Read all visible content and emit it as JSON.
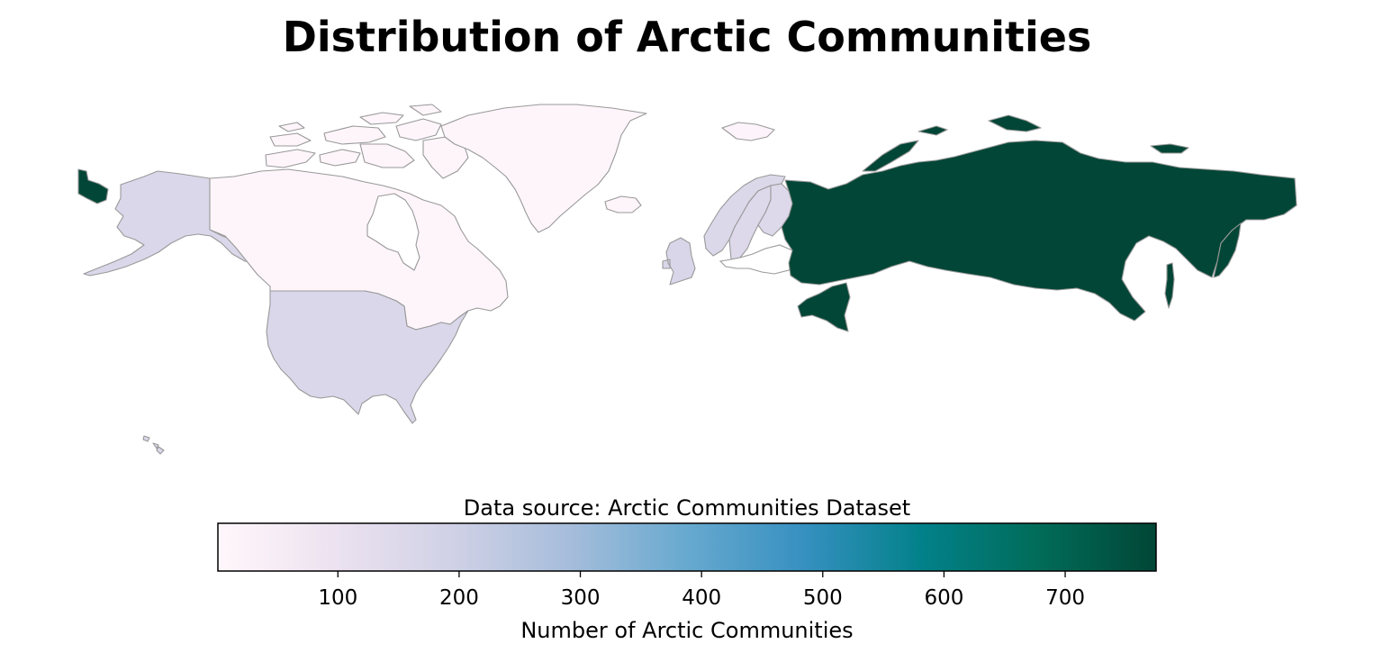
{
  "title": "Distribution of Arctic Communities",
  "data_source_text": "Data source: Arctic Communities Dataset",
  "colors": {
    "border": "#999999",
    "ramp": [
      "#fff7fb",
      "#ece2f0",
      "#d0d1e6",
      "#a6bddb",
      "#67a9cf",
      "#3690c0",
      "#02818a",
      "#016c59",
      "#014636"
    ]
  },
  "chart_data": {
    "type": "choropleth",
    "title": "Distribution of Arctic Communities",
    "colormap": "PuBuGn",
    "value_range": [
      1,
      775
    ],
    "regions": [
      {
        "name": "Canada",
        "value": 12
      },
      {
        "name": "Greenland",
        "value": 10
      },
      {
        "name": "United States",
        "value": 160
      },
      {
        "name": "Norway",
        "value": 155
      },
      {
        "name": "Sweden",
        "value": 150
      },
      {
        "name": "Finland",
        "value": 150
      },
      {
        "name": "Iceland",
        "value": 12
      },
      {
        "name": "United Kingdom",
        "value": 165
      },
      {
        "name": "Svalbard",
        "value": 14
      },
      {
        "name": "Russia",
        "value": 775
      }
    ],
    "colorbar": {
      "label": "Number of Arctic Communities",
      "ticks": [
        100,
        200,
        300,
        400,
        500,
        600,
        700
      ]
    }
  }
}
